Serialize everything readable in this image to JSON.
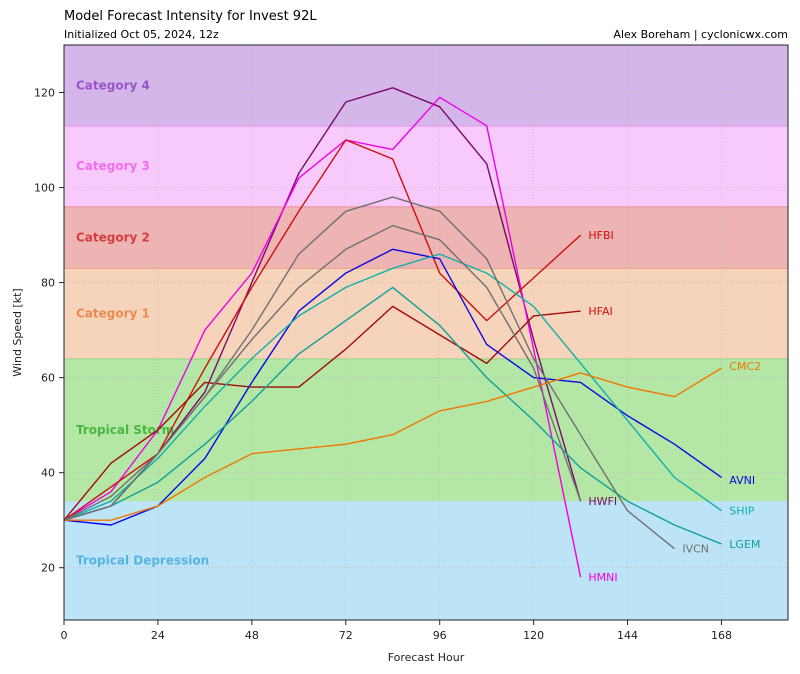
{
  "header": {
    "title": "Model Forecast Intensity for Invest 92L",
    "subtitle": "Initialized Oct 05, 2024, 12z",
    "credit": "Alex Boreham | cyclonicwx.com"
  },
  "chart_data": {
    "type": "line",
    "title": "Model Forecast Intensity for Invest 92L",
    "subtitle": "Initialized Oct 05, 2024, 12z",
    "xlabel": "Forecast Hour",
    "ylabel": "Wind Speed [kt]",
    "xlim": [
      0,
      185
    ],
    "ylim": [
      9,
      130
    ],
    "x_ticks": [
      0,
      24,
      48,
      72,
      96,
      120,
      144,
      168
    ],
    "y_ticks": [
      20,
      40,
      60,
      80,
      100,
      120
    ],
    "grid": true,
    "bands": [
      {
        "name": "Tropical Depression",
        "from": 9,
        "to": 34,
        "fill": "#bde3f6",
        "edge": "#bde3f6",
        "text_color": "#56b4e0"
      },
      {
        "name": "Tropical Storm",
        "from": 34,
        "to": 64,
        "fill": "#b4e6a6",
        "edge": "#6fcf6a",
        "text_color": "#4ab83f"
      },
      {
        "name": "Category 1",
        "from": 64,
        "to": 83,
        "fill": "#f6d3bb",
        "edge": "#e8a06e",
        "text_color": "#ea8a4f"
      },
      {
        "name": "Category 2",
        "from": 83,
        "to": 96,
        "fill": "#eeb3b3",
        "edge": "#e06a6a",
        "text_color": "#d43f3f"
      },
      {
        "name": "Category 3",
        "from": 96,
        "to": 113,
        "fill": "#f8c9fb",
        "edge": "#e07ae8",
        "text_color": "#f06ef0"
      },
      {
        "name": "Category 4",
        "from": 113,
        "to": 130,
        "fill": "#d5b6ea",
        "edge": "#c46cd8",
        "text_color": "#9a55c9"
      }
    ],
    "series": [
      {
        "name": "HWFI",
        "color": "#7a0a6a",
        "x": [
          0,
          12,
          24,
          36,
          48,
          60,
          72,
          84,
          96,
          108,
          120,
          132
        ],
        "y": [
          30,
          33,
          44,
          57,
          80,
          103,
          118,
          121,
          117,
          105,
          68,
          34
        ]
      },
      {
        "name": "HMNI",
        "color": "#f000e8",
        "x": [
          0,
          12,
          24,
          36,
          48,
          60,
          72,
          84,
          96,
          108,
          120,
          132
        ],
        "y": [
          30,
          36,
          49,
          70,
          82,
          102,
          110,
          108,
          119,
          113,
          66,
          18
        ]
      },
      {
        "name": "HFBI",
        "color": "#cc1010",
        "x": [
          0,
          12,
          24,
          36,
          48,
          60,
          72,
          84,
          96,
          108,
          120,
          132
        ],
        "y": [
          30,
          37,
          44,
          62,
          79,
          95,
          110,
          106,
          82,
          72,
          81,
          90
        ]
      },
      {
        "name": "HFAI",
        "color": "#a00c0c",
        "x": [
          0,
          12,
          24,
          36,
          48,
          60,
          72,
          84,
          96,
          108,
          120,
          132
        ],
        "y": [
          30,
          42,
          49,
          59,
          58,
          58,
          66,
          75,
          69,
          63,
          73,
          74
        ]
      },
      {
        "name": "AVNI",
        "color": "#0a0ae0",
        "x": [
          0,
          12,
          24,
          36,
          48,
          60,
          72,
          84,
          96,
          108,
          120,
          132,
          144,
          156,
          168
        ],
        "y": [
          30,
          29,
          33,
          43,
          59,
          74,
          82,
          87,
          85,
          67,
          60,
          59,
          52,
          46,
          39
        ]
      },
      {
        "name": "SHIP",
        "color": "#10b0a8",
        "x": [
          0,
          12,
          24,
          36,
          48,
          60,
          72,
          84,
          96,
          108,
          120,
          132,
          144,
          156,
          168
        ],
        "y": [
          30,
          34,
          43,
          54,
          64,
          73,
          79,
          83,
          86,
          82,
          75,
          63,
          51,
          39,
          32
        ]
      },
      {
        "name": "LGEM",
        "color": "#10a098",
        "x": [
          0,
          12,
          24,
          36,
          48,
          60,
          72,
          84,
          96,
          108,
          120,
          132,
          144,
          156,
          168
        ],
        "y": [
          30,
          33,
          38,
          46,
          55,
          65,
          72,
          79,
          71,
          60,
          51,
          41,
          34,
          29,
          25
        ]
      },
      {
        "name": "CMC2",
        "color": "#f07800",
        "x": [
          0,
          12,
          24,
          36,
          48,
          60,
          72,
          84,
          96,
          108,
          120,
          132,
          144,
          156,
          168
        ],
        "y": [
          30,
          30,
          33,
          39,
          44,
          45,
          46,
          48,
          53,
          55,
          58,
          61,
          58,
          56,
          62
        ]
      },
      {
        "name": "IVCN",
        "color": "#707070",
        "x": [
          0,
          12,
          24,
          36,
          48,
          60,
          72,
          84,
          96,
          108,
          120,
          132,
          144,
          156
        ],
        "y": [
          30,
          33,
          44,
          56,
          70,
          86,
          95,
          98,
          95,
          85,
          64,
          48,
          32,
          24
        ]
      },
      {
        "name": "IVCN-alt",
        "color": "#707070",
        "x": [
          0,
          12,
          24,
          36,
          48,
          60,
          72,
          84,
          96,
          108,
          120,
          132
        ],
        "y": [
          30,
          35,
          44,
          56,
          68,
          79,
          87,
          92,
          89,
          79,
          62,
          34
        ]
      }
    ],
    "end_labels": [
      {
        "text": "HFBI",
        "x": 134,
        "y": 90,
        "color": "#cc1010"
      },
      {
        "text": "HFAI",
        "x": 134,
        "y": 74,
        "color": "#cc1010"
      },
      {
        "text": "CMC2",
        "x": 170,
        "y": 62.5,
        "color": "#f07800"
      },
      {
        "text": "AVNI",
        "x": 170,
        "y": 38.5,
        "color": "#0a0ae0"
      },
      {
        "text": "HWFI",
        "x": 134,
        "y": 34,
        "color": "#7a0a6a"
      },
      {
        "text": "SHIP",
        "x": 170,
        "y": 32,
        "color": "#10b0a8"
      },
      {
        "text": "LGEM",
        "x": 170,
        "y": 25,
        "color": "#10a098"
      },
      {
        "text": "IVCN",
        "x": 158,
        "y": 24,
        "color": "#707070"
      },
      {
        "text": "HMNI",
        "x": 134,
        "y": 18,
        "color": "#f000e8"
      }
    ]
  }
}
